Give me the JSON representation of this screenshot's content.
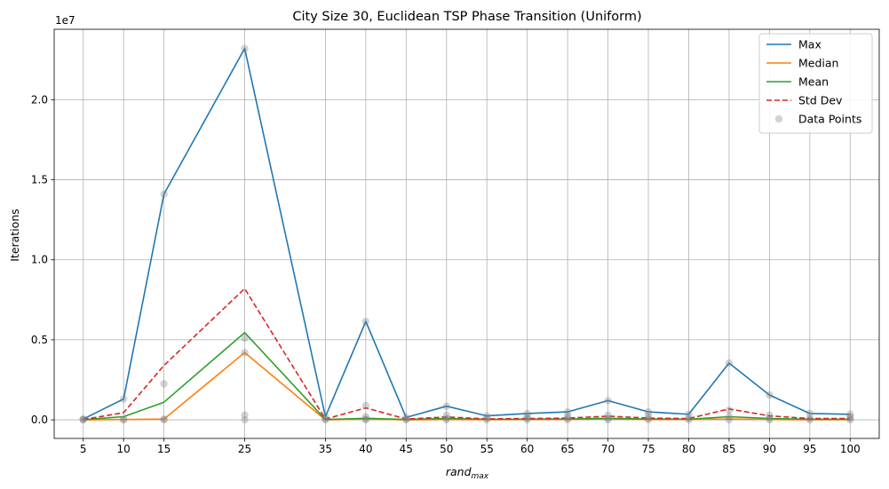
{
  "chart_data": {
    "type": "line",
    "title": "City Size 30, Euclidean TSP Phase Transition (Uniform)",
    "xlabel_base": "rand",
    "xlabel_sub": "max",
    "ylabel": "Iterations",
    "y_offset_label": "1e7",
    "x": [
      5,
      10,
      15,
      25,
      35,
      40,
      45,
      50,
      55,
      60,
      65,
      70,
      75,
      80,
      85,
      90,
      95,
      100
    ],
    "x_ticks": [
      5,
      10,
      15,
      25,
      35,
      40,
      45,
      50,
      55,
      60,
      65,
      70,
      75,
      80,
      85,
      90,
      95,
      100
    ],
    "y_ticks": [
      0.0,
      0.5,
      1.0,
      1.5,
      2.0
    ],
    "y_tick_labels": [
      "0.0",
      "0.5",
      "1.0",
      "1.5",
      "2.0"
    ],
    "y_multiplier": 10000000,
    "xlim": [
      1.4,
      103.6
    ],
    "ylim": [
      -0.116,
      2.44
    ],
    "grid": true,
    "legend_position": "top-right",
    "series": [
      {
        "name": "Max",
        "color": "#1f77b4",
        "dash": "solid",
        "values": [
          0.005,
          0.13,
          1.41,
          2.32,
          0.02,
          0.615,
          0.015,
          0.085,
          0.025,
          0.04,
          0.05,
          0.12,
          0.05,
          0.035,
          0.355,
          0.155,
          0.04,
          0.035
        ]
      },
      {
        "name": "Median",
        "color": "#ff7f0e",
        "dash": "solid",
        "values": [
          0.0,
          0.002,
          0.005,
          0.42,
          0.0,
          0.005,
          0.0,
          0.002,
          0.001,
          0.002,
          0.003,
          0.005,
          0.002,
          0.002,
          0.005,
          0.002,
          0.001,
          0.001
        ]
      },
      {
        "name": "Mean",
        "color": "#2ca02c",
        "dash": "solid",
        "values": [
          0.001,
          0.02,
          0.11,
          0.545,
          0.002,
          0.01,
          0.002,
          0.008,
          0.003,
          0.004,
          0.005,
          0.01,
          0.005,
          0.004,
          0.02,
          0.008,
          0.004,
          0.004
        ]
      },
      {
        "name": "Std Dev",
        "color": "#d62728",
        "dash": "dashed",
        "values": [
          0.002,
          0.045,
          0.34,
          0.82,
          0.005,
          0.075,
          0.005,
          0.018,
          0.006,
          0.008,
          0.011,
          0.023,
          0.011,
          0.008,
          0.068,
          0.025,
          0.008,
          0.008
        ]
      }
    ],
    "scatter": {
      "name": "Data Points",
      "color": "#808080",
      "points": [
        [
          5,
          0.0
        ],
        [
          5,
          0.003
        ],
        [
          5,
          0.005
        ],
        [
          10,
          0.0
        ],
        [
          10,
          0.002
        ],
        [
          10,
          0.13
        ],
        [
          15,
          0.0
        ],
        [
          15,
          0.005
        ],
        [
          15,
          0.225
        ],
        [
          15,
          1.41
        ],
        [
          25,
          0.0
        ],
        [
          25,
          0.03
        ],
        [
          25,
          0.42
        ],
        [
          25,
          0.51
        ],
        [
          25,
          2.32
        ],
        [
          35,
          0.0
        ],
        [
          35,
          0.005
        ],
        [
          35,
          0.02
        ],
        [
          40,
          0.0
        ],
        [
          40,
          0.005
        ],
        [
          40,
          0.02
        ],
        [
          40,
          0.09
        ],
        [
          40,
          0.615
        ],
        [
          45,
          0.0
        ],
        [
          45,
          0.005
        ],
        [
          45,
          0.015
        ],
        [
          50,
          0.0
        ],
        [
          50,
          0.01
        ],
        [
          50,
          0.03
        ],
        [
          50,
          0.085
        ],
        [
          55,
          0.0
        ],
        [
          55,
          0.01
        ],
        [
          55,
          0.025
        ],
        [
          60,
          0.0
        ],
        [
          60,
          0.01
        ],
        [
          60,
          0.02
        ],
        [
          60,
          0.04
        ],
        [
          65,
          0.0
        ],
        [
          65,
          0.01
        ],
        [
          65,
          0.025
        ],
        [
          65,
          0.05
        ],
        [
          70,
          0.0
        ],
        [
          70,
          0.01
        ],
        [
          70,
          0.03
        ],
        [
          70,
          0.12
        ],
        [
          75,
          0.0
        ],
        [
          75,
          0.01
        ],
        [
          75,
          0.03
        ],
        [
          75,
          0.05
        ],
        [
          80,
          0.0
        ],
        [
          80,
          0.01
        ],
        [
          80,
          0.035
        ],
        [
          85,
          0.0
        ],
        [
          85,
          0.02
        ],
        [
          85,
          0.06
        ],
        [
          85,
          0.355
        ],
        [
          90,
          0.0
        ],
        [
          90,
          0.01
        ],
        [
          90,
          0.03
        ],
        [
          90,
          0.155
        ],
        [
          95,
          0.0
        ],
        [
          95,
          0.01
        ],
        [
          95,
          0.04
        ],
        [
          100,
          0.0
        ],
        [
          100,
          0.01
        ],
        [
          100,
          0.02
        ],
        [
          100,
          0.035
        ]
      ]
    }
  }
}
